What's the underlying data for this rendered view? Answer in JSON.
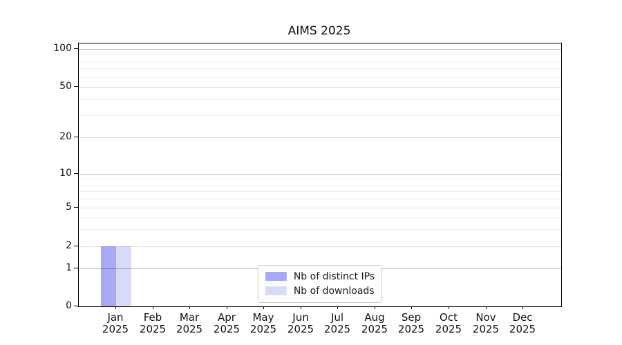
{
  "chart_data": {
    "type": "bar",
    "title": "AIMS 2025",
    "year": "2025",
    "months": [
      "Jan",
      "Feb",
      "Mar",
      "Apr",
      "May",
      "Jun",
      "Jul",
      "Aug",
      "Sep",
      "Oct",
      "Nov",
      "Dec"
    ],
    "series": [
      {
        "name": "Nb of distinct IPs",
        "color": "#a8a8f5",
        "values": [
          2,
          0,
          0,
          0,
          0,
          0,
          0,
          0,
          0,
          0,
          0,
          0
        ]
      },
      {
        "name": "Nb of downloads",
        "color": "#d9d9f8",
        "values": [
          2,
          0,
          0,
          0,
          0,
          0,
          0,
          0,
          0,
          0,
          0,
          0
        ]
      }
    ],
    "yticks": [
      0,
      1,
      2,
      5,
      10,
      20,
      50,
      100
    ],
    "ylim": [
      0,
      120
    ],
    "scale": "symlog",
    "grid": true,
    "legend_position": "lower center",
    "xlabel": "",
    "ylabel": ""
  }
}
